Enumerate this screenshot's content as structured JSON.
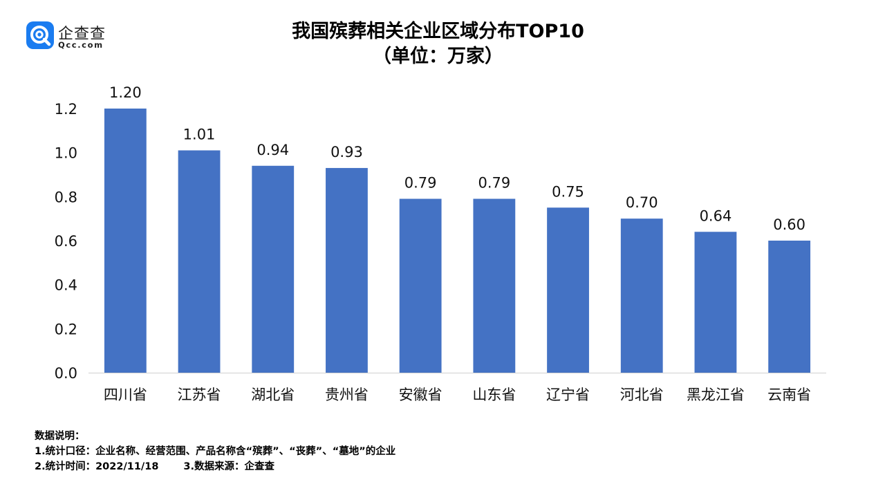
{
  "logo": {
    "icon": "qcc-logo-icon",
    "name": "企查查",
    "domain": "Qcc.com",
    "color": "#1a7cf0"
  },
  "chart_data": {
    "type": "bar",
    "title": "我国殡葬相关企业区域分布TOP10",
    "subtitle": "（单位：万家）",
    "categories": [
      "四川省",
      "江苏省",
      "湖北省",
      "贵州省",
      "安徽省",
      "山东省",
      "辽宁省",
      "河北省",
      "黑龙江省",
      "云南省"
    ],
    "values": [
      1.2,
      1.01,
      0.94,
      0.93,
      0.79,
      0.79,
      0.75,
      0.7,
      0.64,
      0.6
    ],
    "data_labels": [
      "1.20",
      "1.01",
      "0.94",
      "0.93",
      "0.79",
      "0.79",
      "0.75",
      "0.70",
      "0.64",
      "0.60"
    ],
    "yticks": [
      "0.0",
      "0.2",
      "0.4",
      "0.6",
      "0.8",
      "1.0",
      "1.2"
    ],
    "ylim": [
      0,
      1.2
    ],
    "xlabel": "",
    "ylabel": "",
    "grid": false,
    "bar_color": "#4472c4"
  },
  "notes": {
    "heading": "数据说明：",
    "line1": "1.统计口径：企业名称、经营范围、产品名称含“殡葬”、“丧葬”、“墓地”的企业",
    "line2a": "2.统计时间：2022/11/18",
    "line2b": "3.数据来源：企查查"
  }
}
